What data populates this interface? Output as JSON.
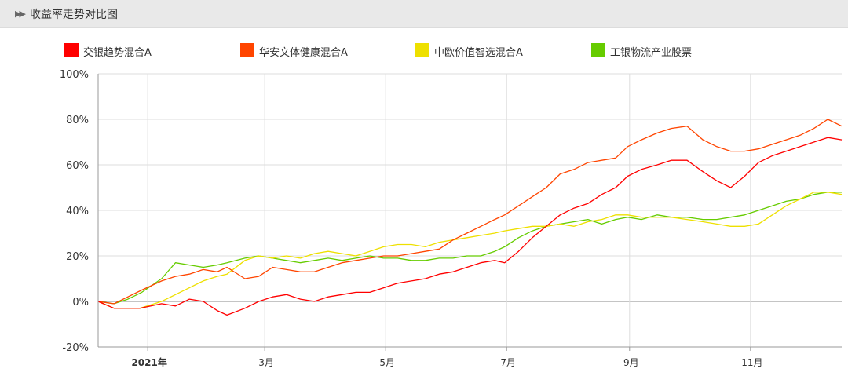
{
  "header": {
    "title": "收益率走势对比图",
    "icon": "double-chevron-right-icon"
  },
  "chart_data": {
    "type": "line",
    "title": "收益率走势对比图",
    "y_unit": "%",
    "ylim": [
      -20,
      100
    ],
    "y_ticks": [
      100,
      80,
      60,
      40,
      20,
      0,
      -20
    ],
    "y_tick_labels": [
      "100%",
      "80%",
      "60%",
      "40%",
      "20%",
      "0%",
      "-20%"
    ],
    "x_range": [
      "2020-12-07",
      "2021-12-17"
    ],
    "x_ticks": [
      {
        "date": "2021-01-01",
        "label": "2021年",
        "bold": true
      },
      {
        "date": "2021-03-01",
        "label": "3月"
      },
      {
        "date": "2021-05-01",
        "label": "5月"
      },
      {
        "date": "2021-07-01",
        "label": "7月"
      },
      {
        "date": "2021-09-01",
        "label": "9月"
      },
      {
        "date": "2021-11-01",
        "label": "11月"
      }
    ],
    "grid": true,
    "legend_position": "top",
    "series": [
      {
        "name": "交银趋势混合A",
        "color": "#ff0000",
        "points": [
          [
            "2020-12-07",
            0
          ],
          [
            "2020-12-15",
            -3
          ],
          [
            "2020-12-28",
            -3
          ],
          [
            "2021-01-08",
            -1
          ],
          [
            "2021-01-15",
            -2
          ],
          [
            "2021-01-22",
            1
          ],
          [
            "2021-01-29",
            0
          ],
          [
            "2021-02-05",
            -4
          ],
          [
            "2021-02-10",
            -6
          ],
          [
            "2021-02-19",
            -3
          ],
          [
            "2021-02-26",
            0
          ],
          [
            "2021-03-05",
            2
          ],
          [
            "2021-03-12",
            3
          ],
          [
            "2021-03-19",
            1
          ],
          [
            "2021-03-26",
            0
          ],
          [
            "2021-04-02",
            2
          ],
          [
            "2021-04-09",
            3
          ],
          [
            "2021-04-16",
            4
          ],
          [
            "2021-04-23",
            4
          ],
          [
            "2021-04-30",
            6
          ],
          [
            "2021-05-07",
            8
          ],
          [
            "2021-05-14",
            9
          ],
          [
            "2021-05-21",
            10
          ],
          [
            "2021-05-28",
            12
          ],
          [
            "2021-06-04",
            13
          ],
          [
            "2021-06-11",
            15
          ],
          [
            "2021-06-18",
            17
          ],
          [
            "2021-06-25",
            18
          ],
          [
            "2021-06-30",
            17
          ],
          [
            "2021-07-07",
            22
          ],
          [
            "2021-07-14",
            28
          ],
          [
            "2021-07-21",
            33
          ],
          [
            "2021-07-28",
            38
          ],
          [
            "2021-08-04",
            41
          ],
          [
            "2021-08-11",
            43
          ],
          [
            "2021-08-18",
            47
          ],
          [
            "2021-08-25",
            50
          ],
          [
            "2021-08-31",
            55
          ],
          [
            "2021-09-07",
            58
          ],
          [
            "2021-09-15",
            60
          ],
          [
            "2021-09-22",
            62
          ],
          [
            "2021-09-30",
            62
          ],
          [
            "2021-10-08",
            57
          ],
          [
            "2021-10-15",
            53
          ],
          [
            "2021-10-22",
            50
          ],
          [
            "2021-10-29",
            55
          ],
          [
            "2021-11-05",
            61
          ],
          [
            "2021-11-12",
            64
          ],
          [
            "2021-11-19",
            66
          ],
          [
            "2021-11-26",
            68
          ],
          [
            "2021-12-03",
            70
          ],
          [
            "2021-12-10",
            72
          ],
          [
            "2021-12-17",
            71
          ]
        ]
      },
      {
        "name": "华安文体健康混合A",
        "color": "#ff4500",
        "points": [
          [
            "2020-12-07",
            0
          ],
          [
            "2020-12-15",
            -1
          ],
          [
            "2020-12-22",
            2
          ],
          [
            "2020-12-29",
            5
          ],
          [
            "2021-01-08",
            9
          ],
          [
            "2021-01-15",
            11
          ],
          [
            "2021-01-22",
            12
          ],
          [
            "2021-01-29",
            14
          ],
          [
            "2021-02-05",
            13
          ],
          [
            "2021-02-10",
            15
          ],
          [
            "2021-02-19",
            10
          ],
          [
            "2021-02-26",
            11
          ],
          [
            "2021-03-05",
            15
          ],
          [
            "2021-03-12",
            14
          ],
          [
            "2021-03-19",
            13
          ],
          [
            "2021-03-26",
            13
          ],
          [
            "2021-04-02",
            15
          ],
          [
            "2021-04-09",
            17
          ],
          [
            "2021-04-16",
            18
          ],
          [
            "2021-04-23",
            19
          ],
          [
            "2021-04-30",
            20
          ],
          [
            "2021-05-07",
            20
          ],
          [
            "2021-05-14",
            21
          ],
          [
            "2021-05-21",
            22
          ],
          [
            "2021-05-28",
            23
          ],
          [
            "2021-06-04",
            27
          ],
          [
            "2021-06-11",
            30
          ],
          [
            "2021-06-18",
            33
          ],
          [
            "2021-06-25",
            36
          ],
          [
            "2021-06-30",
            38
          ],
          [
            "2021-07-07",
            42
          ],
          [
            "2021-07-14",
            46
          ],
          [
            "2021-07-21",
            50
          ],
          [
            "2021-07-28",
            56
          ],
          [
            "2021-08-04",
            58
          ],
          [
            "2021-08-11",
            61
          ],
          [
            "2021-08-18",
            62
          ],
          [
            "2021-08-25",
            63
          ],
          [
            "2021-08-31",
            68
          ],
          [
            "2021-09-07",
            71
          ],
          [
            "2021-09-15",
            74
          ],
          [
            "2021-09-22",
            76
          ],
          [
            "2021-09-30",
            77
          ],
          [
            "2021-10-08",
            71
          ],
          [
            "2021-10-15",
            68
          ],
          [
            "2021-10-22",
            66
          ],
          [
            "2021-10-29",
            66
          ],
          [
            "2021-11-05",
            67
          ],
          [
            "2021-11-12",
            69
          ],
          [
            "2021-11-19",
            71
          ],
          [
            "2021-11-26",
            73
          ],
          [
            "2021-12-03",
            76
          ],
          [
            "2021-12-10",
            80
          ],
          [
            "2021-12-17",
            77
          ]
        ]
      },
      {
        "name": "中欧价值智选混合A",
        "color": "#eee000",
        "points": [
          [
            "2020-12-07",
            0
          ],
          [
            "2020-12-15",
            -3
          ],
          [
            "2020-12-28",
            -3
          ],
          [
            "2021-01-08",
            0
          ],
          [
            "2021-01-15",
            3
          ],
          [
            "2021-01-22",
            6
          ],
          [
            "2021-01-29",
            9
          ],
          [
            "2021-02-05",
            11
          ],
          [
            "2021-02-10",
            12
          ],
          [
            "2021-02-19",
            18
          ],
          [
            "2021-02-26",
            20
          ],
          [
            "2021-03-05",
            19
          ],
          [
            "2021-03-12",
            20
          ],
          [
            "2021-03-19",
            19
          ],
          [
            "2021-03-26",
            21
          ],
          [
            "2021-04-02",
            22
          ],
          [
            "2021-04-09",
            21
          ],
          [
            "2021-04-16",
            20
          ],
          [
            "2021-04-23",
            22
          ],
          [
            "2021-04-30",
            24
          ],
          [
            "2021-05-07",
            25
          ],
          [
            "2021-05-14",
            25
          ],
          [
            "2021-05-21",
            24
          ],
          [
            "2021-05-28",
            26
          ],
          [
            "2021-06-04",
            27
          ],
          [
            "2021-06-11",
            28
          ],
          [
            "2021-06-18",
            29
          ],
          [
            "2021-06-25",
            30
          ],
          [
            "2021-06-30",
            31
          ],
          [
            "2021-07-07",
            32
          ],
          [
            "2021-07-14",
            33
          ],
          [
            "2021-07-21",
            33
          ],
          [
            "2021-07-28",
            34
          ],
          [
            "2021-08-04",
            33
          ],
          [
            "2021-08-11",
            35
          ],
          [
            "2021-08-18",
            36
          ],
          [
            "2021-08-25",
            38
          ],
          [
            "2021-08-31",
            38
          ],
          [
            "2021-09-07",
            37
          ],
          [
            "2021-09-15",
            37
          ],
          [
            "2021-09-22",
            37
          ],
          [
            "2021-09-30",
            36
          ],
          [
            "2021-10-08",
            35
          ],
          [
            "2021-10-15",
            34
          ],
          [
            "2021-10-22",
            33
          ],
          [
            "2021-10-29",
            33
          ],
          [
            "2021-11-05",
            34
          ],
          [
            "2021-11-12",
            38
          ],
          [
            "2021-11-19",
            42
          ],
          [
            "2021-11-26",
            45
          ],
          [
            "2021-12-03",
            48
          ],
          [
            "2021-12-10",
            48
          ],
          [
            "2021-12-17",
            47
          ]
        ]
      },
      {
        "name": "工银物流产业股票",
        "color": "#66cc00",
        "points": [
          [
            "2020-12-07",
            0
          ],
          [
            "2020-12-15",
            -1
          ],
          [
            "2020-12-22",
            1
          ],
          [
            "2020-12-29",
            4
          ],
          [
            "2021-01-08",
            10
          ],
          [
            "2021-01-15",
            17
          ],
          [
            "2021-01-22",
            16
          ],
          [
            "2021-01-29",
            15
          ],
          [
            "2021-02-05",
            16
          ],
          [
            "2021-02-10",
            17
          ],
          [
            "2021-02-19",
            19
          ],
          [
            "2021-02-26",
            20
          ],
          [
            "2021-03-05",
            19
          ],
          [
            "2021-03-12",
            18
          ],
          [
            "2021-03-19",
            17
          ],
          [
            "2021-03-26",
            18
          ],
          [
            "2021-04-02",
            19
          ],
          [
            "2021-04-09",
            18
          ],
          [
            "2021-04-16",
            19
          ],
          [
            "2021-04-23",
            20
          ],
          [
            "2021-04-30",
            19
          ],
          [
            "2021-05-07",
            19
          ],
          [
            "2021-05-14",
            18
          ],
          [
            "2021-05-21",
            18
          ],
          [
            "2021-05-28",
            19
          ],
          [
            "2021-06-04",
            19
          ],
          [
            "2021-06-11",
            20
          ],
          [
            "2021-06-18",
            20
          ],
          [
            "2021-06-25",
            22
          ],
          [
            "2021-06-30",
            24
          ],
          [
            "2021-07-07",
            28
          ],
          [
            "2021-07-14",
            31
          ],
          [
            "2021-07-21",
            33
          ],
          [
            "2021-07-28",
            34
          ],
          [
            "2021-08-04",
            35
          ],
          [
            "2021-08-11",
            36
          ],
          [
            "2021-08-18",
            34
          ],
          [
            "2021-08-25",
            36
          ],
          [
            "2021-08-31",
            37
          ],
          [
            "2021-09-07",
            36
          ],
          [
            "2021-09-15",
            38
          ],
          [
            "2021-09-22",
            37
          ],
          [
            "2021-09-30",
            37
          ],
          [
            "2021-10-08",
            36
          ],
          [
            "2021-10-15",
            36
          ],
          [
            "2021-10-22",
            37
          ],
          [
            "2021-10-29",
            38
          ],
          [
            "2021-11-05",
            40
          ],
          [
            "2021-11-12",
            42
          ],
          [
            "2021-11-19",
            44
          ],
          [
            "2021-11-26",
            45
          ],
          [
            "2021-12-03",
            47
          ],
          [
            "2021-12-10",
            48
          ],
          [
            "2021-12-17",
            48
          ]
        ]
      }
    ]
  }
}
